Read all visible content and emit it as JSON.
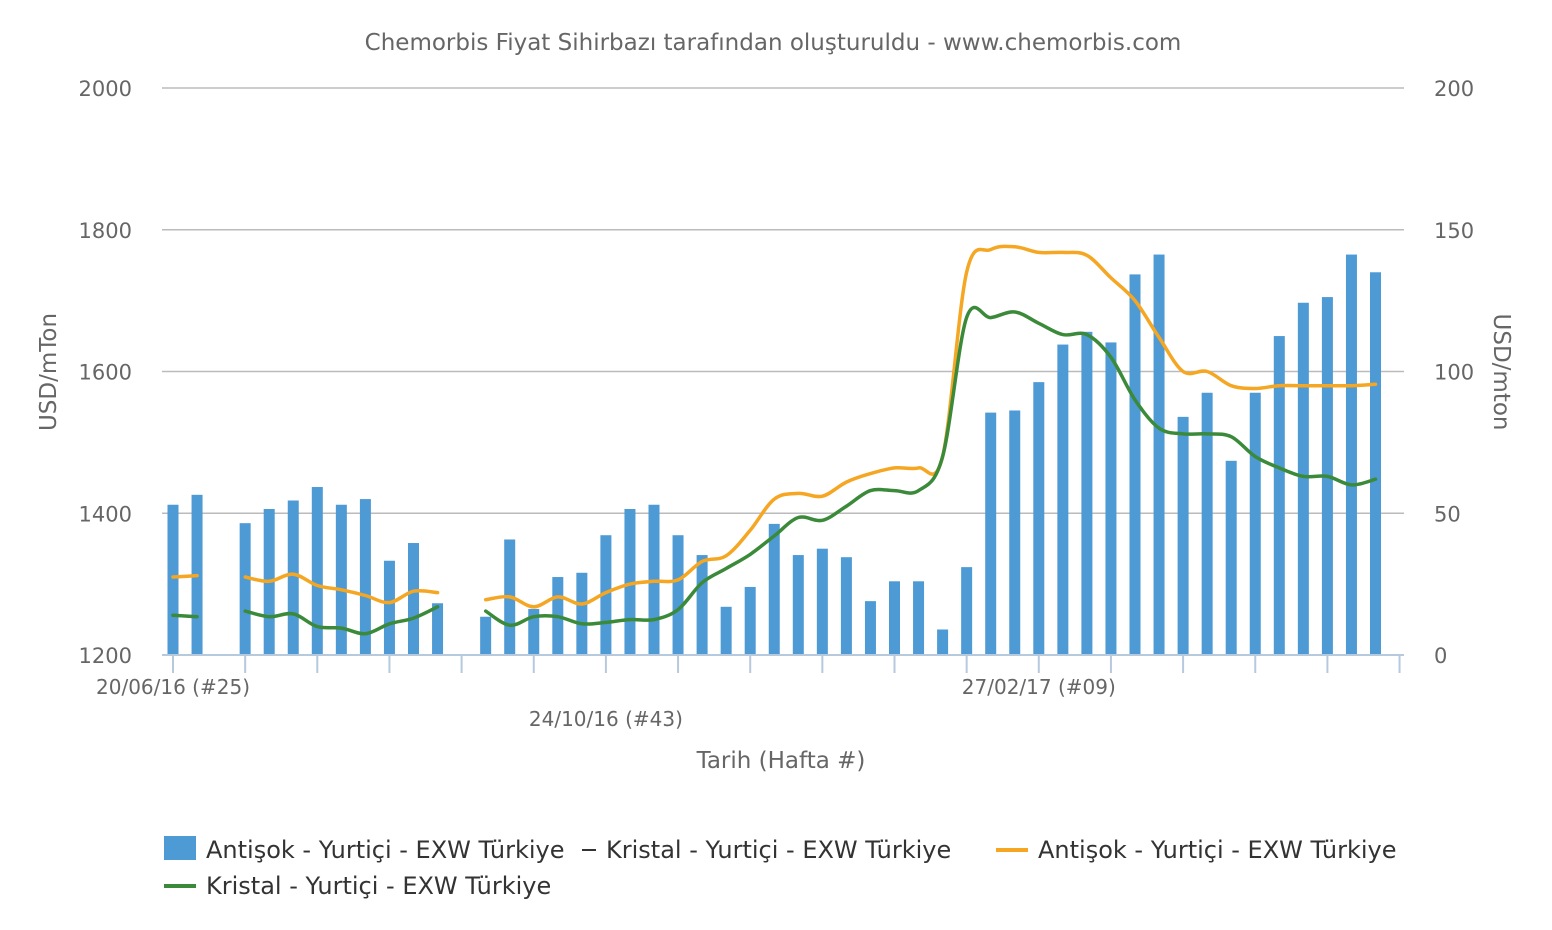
{
  "chart_data": {
    "type": "bar",
    "title": "Chemorbis Fiyat Sihirbazı tarafından oluşturuldu - www.chemorbis.com",
    "xlabel": "Tarih (Hafta #)",
    "ylabel_left": "USD/mTon",
    "ylabel_right": "USD/mton",
    "ylim_left": [
      1200,
      2000
    ],
    "ylim_right": [
      0,
      200
    ],
    "yticks_left": [
      "1200",
      "1400",
      "1600",
      "1800",
      "2000"
    ],
    "yticks_right": [
      "0",
      "50",
      "100",
      "150",
      "200"
    ],
    "x_labels": [
      {
        "text": "20/06/16 (#25)",
        "week": 0
      },
      {
        "text": "24/10/16 (#43)",
        "week": 18
      },
      {
        "text": "27/02/17 (#09)",
        "week": 36
      }
    ],
    "grid": true,
    "legend_position": "bottom",
    "colors": {
      "bar": "#4e9ad5",
      "antisok_line": "#f5a623",
      "kristal_line": "#3b8a3a",
      "grid": "#bbbbbb",
      "axis": "#b7c9dc",
      "text": "#666666"
    },
    "legend": [
      {
        "label": "Antişok - Yurtiçi - EXW Türkiye",
        "kind": "bar"
      },
      {
        "label": "Kristal - Yurtiçi - EXW Türkiye",
        "kind": "dash"
      },
      {
        "label": "Antişok - Yurtiçi - EXW Türkiye",
        "kind": "line",
        "color": "#f5a623"
      },
      {
        "label": "Kristal - Yurtiçi - EXW Türkiye",
        "kind": "line",
        "color": "#3b8a3a"
      }
    ],
    "bars": [
      1412,
      1426,
      null,
      1386,
      1406,
      1418,
      1437,
      1412,
      1420,
      1333,
      1358,
      1273,
      null,
      1254,
      1363,
      1265,
      1310,
      1316,
      1369,
      1406,
      1412,
      1369,
      1341,
      1268,
      1296,
      1385,
      1341,
      1350,
      1338,
      1276,
      1304,
      1304,
      1236,
      1324,
      1542,
      1545,
      1585,
      1638,
      1656,
      1641,
      1737,
      1765,
      1536,
      1570,
      1474,
      1570,
      1650,
      1697,
      1705,
      1765,
      1740
    ],
    "series": [
      {
        "name": "Antişok - Yurtiçi - EXW Türkiye",
        "axis": "right",
        "values": [
          27.5,
          28,
          null,
          27.5,
          26,
          28.5,
          24.5,
          23,
          21,
          18.5,
          22.5,
          22,
          null,
          19.5,
          20.5,
          17,
          20.5,
          18,
          22,
          25,
          26,
          26.5,
          33,
          35,
          44,
          55,
          57,
          56,
          61,
          64,
          66,
          66,
          70,
          135,
          143,
          144,
          142,
          142,
          141,
          133,
          125,
          112,
          100,
          100,
          95,
          94,
          95,
          95,
          95,
          95,
          95.5
        ]
      },
      {
        "name": "Kristal - Yurtiçi - EXW Türkiye",
        "axis": "right",
        "values": [
          14,
          13.5,
          null,
          15.5,
          13.5,
          14.5,
          10,
          9.5,
          7.5,
          11,
          13,
          17,
          null,
          15.5,
          10.5,
          13.5,
          13.5,
          11,
          11.5,
          12.5,
          12.5,
          16,
          25.5,
          30.5,
          35.5,
          42,
          48.5,
          47.5,
          52.5,
          58,
          58,
          58,
          70,
          119,
          119,
          121,
          117,
          113,
          113,
          105,
          90,
          80,
          78,
          78,
          77,
          70,
          66,
          63,
          63,
          60,
          62
        ]
      }
    ]
  }
}
